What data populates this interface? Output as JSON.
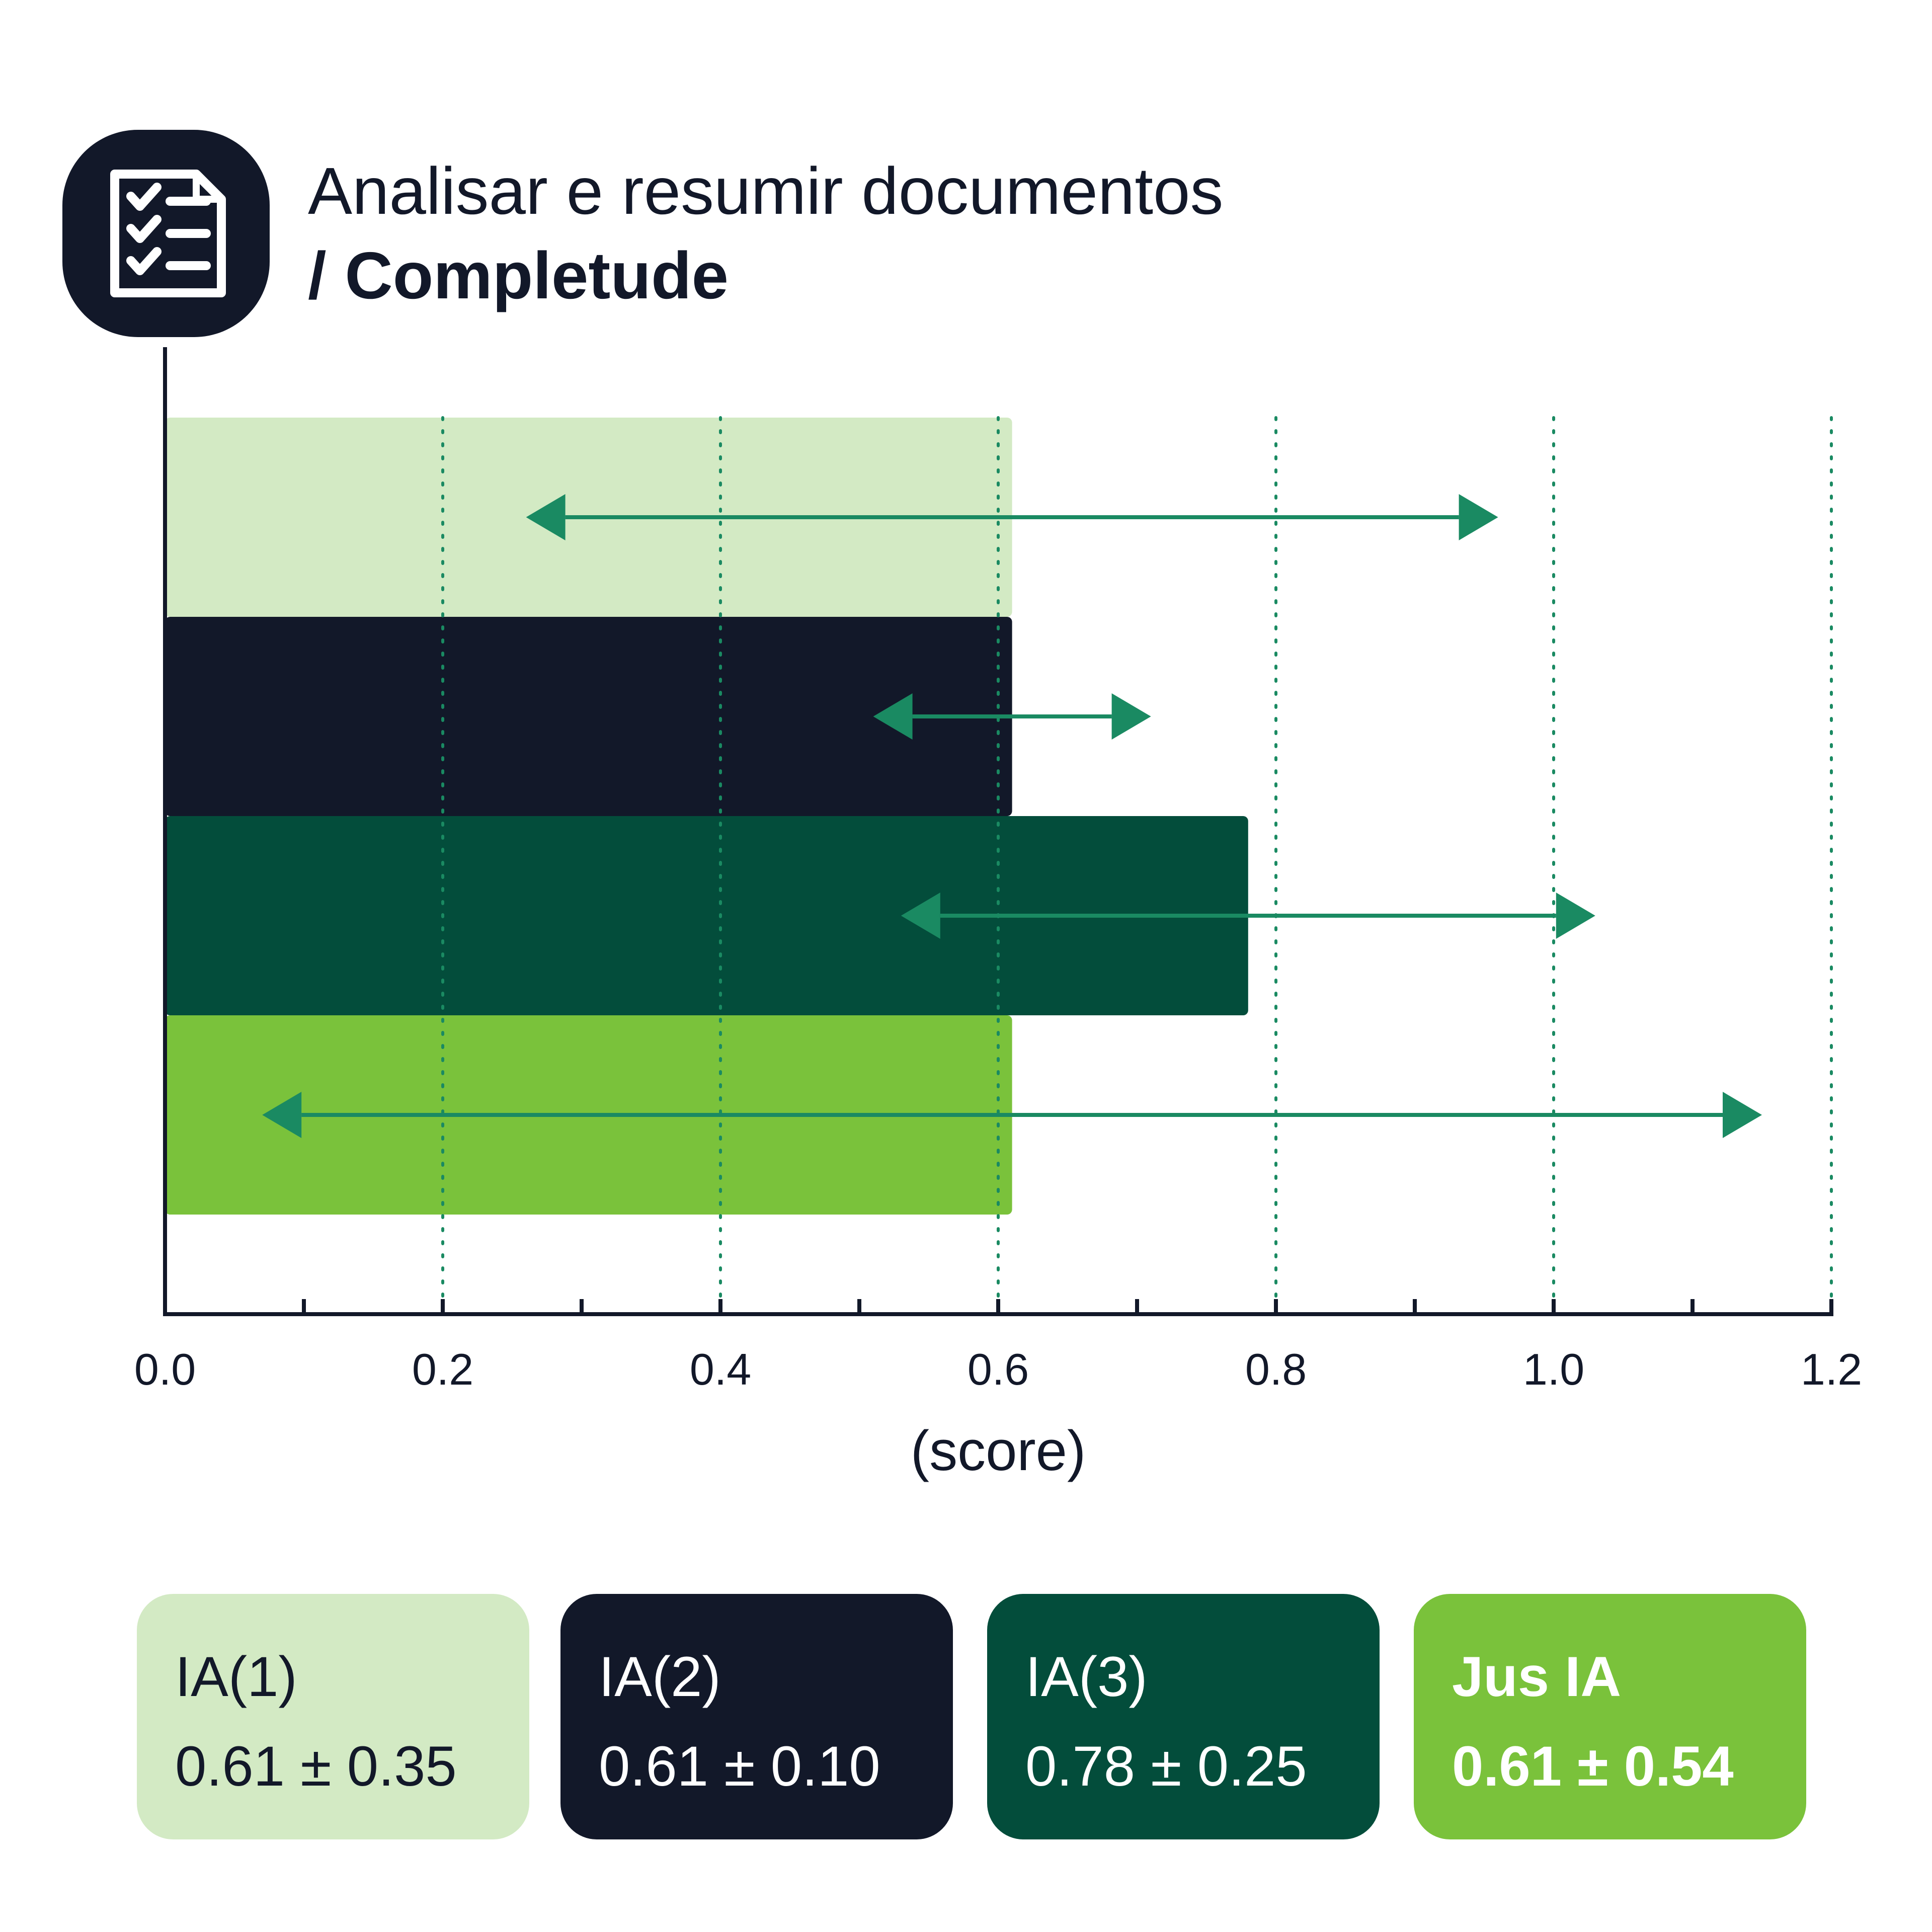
{
  "header": {
    "icon": "checklist-document-icon",
    "title_line1": "Analisar e resumir documentos",
    "title_line2": "/ Completude"
  },
  "colors": {
    "ia1": "#d3eac4",
    "ia2": "#121829",
    "ia3": "#034d3b",
    "jus_ia": "#7ac23b",
    "error_bar": "#1a8a62",
    "grid": "#1a8a62",
    "axis": "#121829"
  },
  "chart_data": {
    "type": "bar",
    "orientation": "horizontal",
    "title": "Analisar e resumir documentos / Completude",
    "xlabel": "(score)",
    "ylabel": "",
    "xlim": [
      0,
      1.2
    ],
    "x_ticks": [
      "0.0",
      "0.2",
      "0.4",
      "0.6",
      "0.8",
      "1.0",
      "1.2"
    ],
    "grid": "vertical dotted lines at 0.2 intervals",
    "legend_position": "bottom",
    "categories": [
      "IA(1)",
      "IA(2)",
      "IA(3)",
      "Jus IA"
    ],
    "values": [
      0.61,
      0.61,
      0.78,
      0.61
    ],
    "errors": [
      0.35,
      0.1,
      0.25,
      0.54
    ],
    "error_bar_style": "double-headed arrows"
  },
  "legend": [
    {
      "name": "IA(1)",
      "value": "0.61 ± 0.35",
      "bg": "#d3eac4",
      "fg": "#121829",
      "bold": false
    },
    {
      "name": "IA(2)",
      "value": "0.61 ± 0.10",
      "bg": "#121829",
      "fg": "#ffffff",
      "bold": false
    },
    {
      "name": "IA(3)",
      "value": "0.78 ± 0.25",
      "bg": "#034d3b",
      "fg": "#ffffff",
      "bold": false
    },
    {
      "name": "Jus IA",
      "value": "0.61 ± 0.54",
      "bg": "#7ac23b",
      "fg": "#ffffff",
      "bold": true
    }
  ]
}
